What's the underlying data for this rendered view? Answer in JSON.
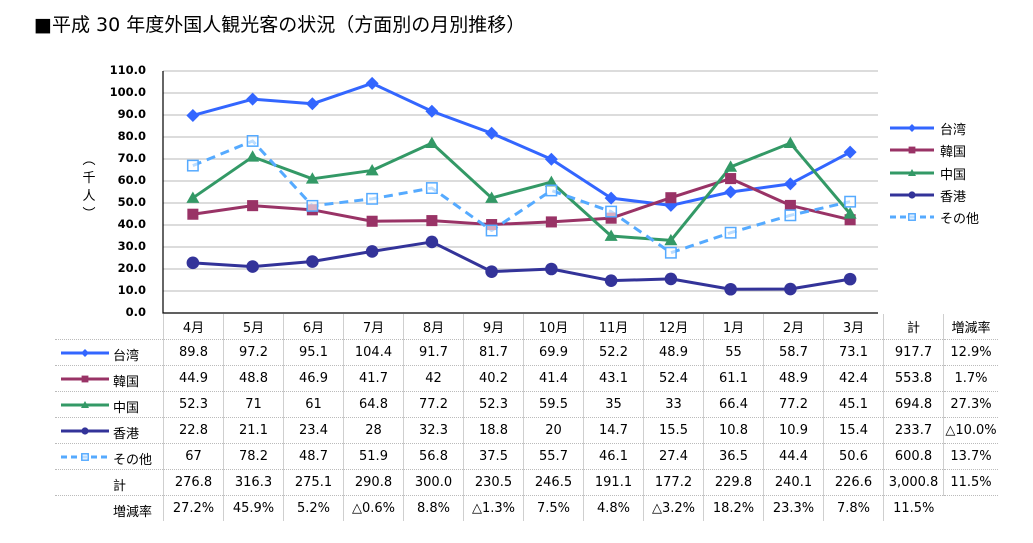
{
  "title": "■平成 30 年度外国人観光客の状況（方面別の月別推移）",
  "chart_data": {
    "type": "line",
    "title": "平成 30 年度外国人観光客の状況（方面別の月別推移）",
    "ylabel": "（千人）",
    "ylabel_chars": [
      "︵",
      "千",
      "人",
      "︶"
    ],
    "ylim": [
      0,
      110
    ],
    "yticks": [
      "0.0",
      "10.0",
      "20.0",
      "30.0",
      "40.0",
      "50.0",
      "60.0",
      "70.0",
      "80.0",
      "90.0",
      "100.0",
      "110.0"
    ],
    "grid": true,
    "legend_position": "right",
    "categories": [
      "4月",
      "5月",
      "6月",
      "7月",
      "8月",
      "9月",
      "10月",
      "11月",
      "12月",
      "1月",
      "2月",
      "3月"
    ],
    "series": [
      {
        "name": "台湾",
        "color": "#3366ff",
        "marker": "diamond",
        "dashed": false,
        "values": [
          89.8,
          97.2,
          95.1,
          104.4,
          91.7,
          81.7,
          69.9,
          52.2,
          48.9,
          55,
          58.7,
          73.1
        ],
        "display": [
          "89.8",
          "97.2",
          "95.1",
          "104.4",
          "91.7",
          "81.7",
          "69.9",
          "52.2",
          "48.9",
          "55",
          "58.7",
          "73.1"
        ],
        "total": "917.7",
        "rate": "12.9%"
      },
      {
        "name": "韓国",
        "color": "#993366",
        "marker": "square",
        "dashed": false,
        "values": [
          44.9,
          48.8,
          46.9,
          41.7,
          42,
          40.2,
          41.4,
          43.1,
          52.4,
          61.1,
          48.9,
          42.4
        ],
        "display": [
          "44.9",
          "48.8",
          "46.9",
          "41.7",
          "42",
          "40.2",
          "41.4",
          "43.1",
          "52.4",
          "61.1",
          "48.9",
          "42.4"
        ],
        "total": "553.8",
        "rate": "1.7%"
      },
      {
        "name": "中国",
        "color": "#339966",
        "marker": "triangle",
        "dashed": false,
        "values": [
          52.3,
          71,
          61,
          64.8,
          77.2,
          52.3,
          59.5,
          35,
          33,
          66.4,
          77.2,
          45.1
        ],
        "display": [
          "52.3",
          "71",
          "61",
          "64.8",
          "77.2",
          "52.3",
          "59.5",
          "35",
          "33",
          "66.4",
          "77.2",
          "45.1"
        ],
        "total": "694.8",
        "rate": "27.3%"
      },
      {
        "name": "香港",
        "color": "#333399",
        "marker": "circle",
        "dashed": false,
        "values": [
          22.8,
          21.1,
          23.4,
          28,
          32.3,
          18.8,
          20,
          14.7,
          15.5,
          10.8,
          10.9,
          15.4
        ],
        "display": [
          "22.8",
          "21.1",
          "23.4",
          "28",
          "32.3",
          "18.8",
          "20",
          "14.7",
          "15.5",
          "10.8",
          "10.9",
          "15.4"
        ],
        "total": "233.7",
        "rate": "△10.0%"
      },
      {
        "name": "その他",
        "color": "#55aaff",
        "marker": "open-square",
        "dashed": true,
        "values": [
          67,
          78.2,
          48.7,
          51.9,
          56.8,
          37.5,
          55.7,
          46.1,
          27.4,
          36.5,
          44.4,
          50.6
        ],
        "display": [
          "67",
          "78.2",
          "48.7",
          "51.9",
          "56.8",
          "37.5",
          "55.7",
          "46.1",
          "27.4",
          "36.5",
          "44.4",
          "50.6"
        ],
        "total": "600.8",
        "rate": "13.7%"
      }
    ],
    "table": {
      "total_header": "計",
      "rate_header": "増減率",
      "total_row": {
        "label": "計",
        "values": [
          "276.8",
          "316.3",
          "275.1",
          "290.8",
          "300.0",
          "230.5",
          "246.5",
          "191.1",
          "177.2",
          "229.8",
          "240.1",
          "226.6"
        ],
        "total": "3,000.8",
        "rate": "11.5%"
      },
      "rate_row": {
        "label": "増減率",
        "values": [
          "27.2%",
          "45.9%",
          "5.2%",
          "△0.6%",
          "8.8%",
          "△1.3%",
          "7.5%",
          "4.8%",
          "△3.2%",
          "18.2%",
          "23.3%",
          "7.8%"
        ],
        "total": "11.5%"
      }
    }
  }
}
